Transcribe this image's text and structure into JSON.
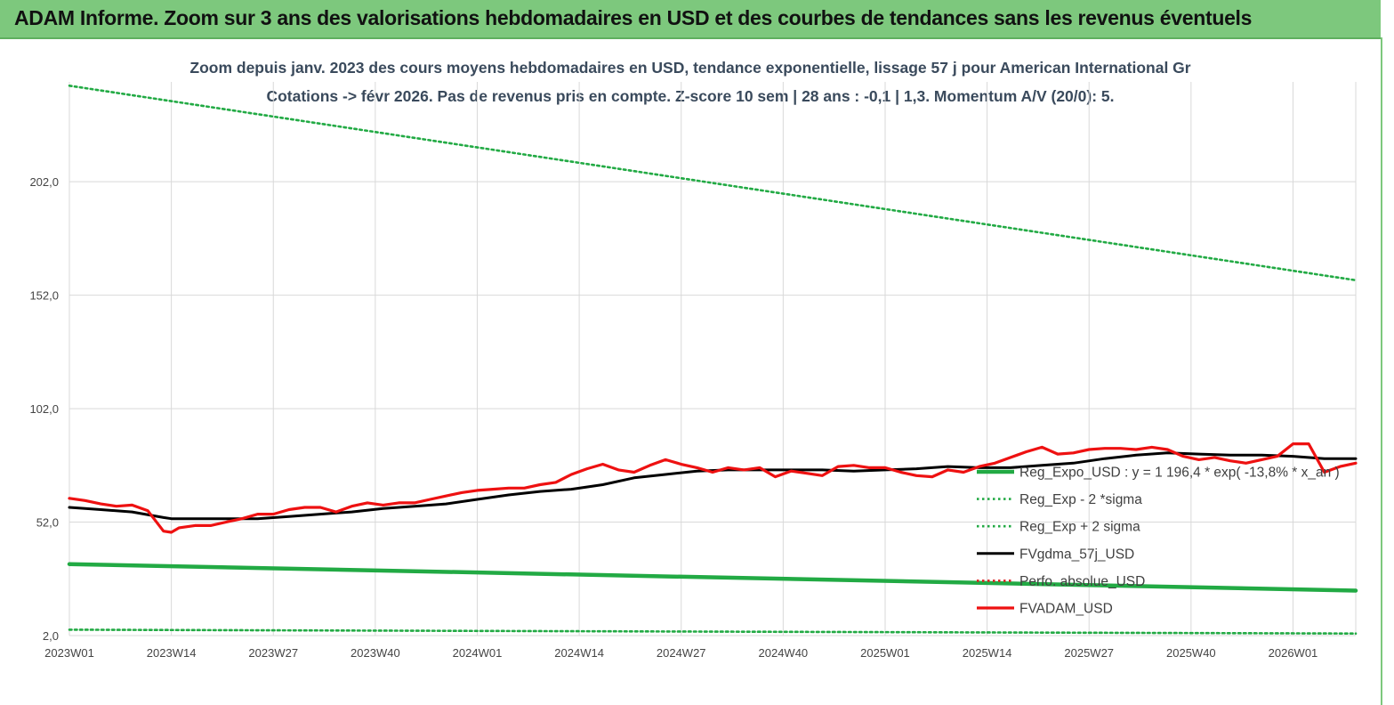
{
  "banner": {
    "title": "ADAM Informe. Zoom sur 3 ans des valorisations hebdomadaires en USD et des courbes de tendances sans les revenus éventuels",
    "background_color": "#7dc87d"
  },
  "chart_data": {
    "type": "line",
    "title": "Zoom depuis janv. 2023 des cours moyens hebdomadaires en USD, tendance exponentielle, lissage 57 j pour American International Gr",
    "subtitle": "Cotations -> févr 2026.  Pas de revenus pris en compte. Z-score 10 sem  | 28 ans : -0,1  | 1,3. Momentum A/V (20/0): 5.",
    "x_tick_labels": [
      "2023W01",
      "2023W14",
      "2023W27",
      "2023W40",
      "2024W01",
      "2024W14",
      "2024W27",
      "2024W40",
      "2025W01",
      "2025W14",
      "2025W27",
      "2025W40",
      "2026W01"
    ],
    "y_tick_labels": [
      "2,0",
      "52,0",
      "102,0",
      "152,0",
      "202,0"
    ],
    "ylim": [
      2,
      246
    ],
    "x_range_weeks": [
      0,
      164
    ],
    "grid": "vertical and horizontal",
    "legend_placement": "right, inside plot",
    "series": [
      {
        "name": "Reg_Expo_USD : y = 1 196,4 * exp( -13,8% * x_an )",
        "color": "#22aa44",
        "style": "solid-thick",
        "x": [
          0,
          164
        ],
        "values": [
          33.5,
          21.8
        ]
      },
      {
        "name": "Reg_Exp - 2 *sigma",
        "color": "#22aa44",
        "style": "dotted",
        "x": [
          0,
          164
        ],
        "values": [
          4.6,
          2.9
        ]
      },
      {
        "name": "Reg_Exp + 2 sigma",
        "color": "#22aa44",
        "style": "dotted",
        "x": [
          0,
          164
        ],
        "values": [
          244.3,
          158.6
        ]
      },
      {
        "name": "FVgdma_57j_USD",
        "color": "#000000",
        "style": "solid",
        "x": [
          0,
          4,
          8,
          12,
          13,
          16,
          20,
          24,
          28,
          32,
          36,
          40,
          44,
          48,
          52,
          56,
          60,
          64,
          68,
          72,
          76,
          80,
          84,
          88,
          92,
          96,
          100,
          104,
          108,
          112,
          116,
          120,
          124,
          128,
          132,
          136,
          140,
          144,
          148,
          152,
          156,
          160,
          164
        ],
        "values": [
          58.5,
          57.5,
          56.5,
          54,
          53.5,
          53.5,
          53.5,
          53.5,
          54.5,
          55.5,
          56.5,
          58,
          59,
          60,
          62,
          64,
          65.5,
          66.5,
          68.5,
          71.5,
          73,
          74.5,
          75,
          75,
          75,
          75,
          74.5,
          75,
          75.5,
          76.5,
          76,
          76,
          77,
          78,
          80,
          81.5,
          82.5,
          82,
          81.5,
          81.5,
          81,
          80,
          80
        ]
      },
      {
        "name": "Perfo. absolue_USD",
        "color": "#dd2222",
        "style": "dotted",
        "x": [],
        "values": []
      },
      {
        "name": "FVADAM_USD",
        "color": "#ee1111",
        "style": "solid-thick",
        "x": [
          0,
          2,
          4,
          6,
          8,
          10,
          12,
          13,
          14,
          16,
          18,
          20,
          22,
          24,
          26,
          28,
          30,
          32,
          34,
          36,
          38,
          40,
          42,
          44,
          46,
          48,
          50,
          52,
          54,
          56,
          58,
          60,
          62,
          64,
          66,
          68,
          70,
          72,
          74,
          76,
          78,
          80,
          82,
          84,
          86,
          88,
          90,
          92,
          94,
          96,
          98,
          100,
          102,
          104,
          106,
          108,
          110,
          112,
          114,
          116,
          118,
          120,
          122,
          124,
          126,
          128,
          130,
          132,
          134,
          136,
          138,
          140,
          142,
          144,
          146,
          148,
          150,
          152,
          154,
          156,
          158,
          160,
          162,
          164
        ],
        "values": [
          62.5,
          61.5,
          60,
          59,
          59.5,
          57,
          48,
          47.5,
          49.5,
          50.5,
          50.5,
          52,
          53.5,
          55.5,
          55.5,
          57.5,
          58.5,
          58.5,
          56.5,
          59,
          60.5,
          59.5,
          60.5,
          60.5,
          62,
          63.5,
          65,
          66,
          66.5,
          67,
          67,
          68.5,
          69.5,
          73,
          75.5,
          77.5,
          75,
          74,
          77,
          79.5,
          77.5,
          76,
          74,
          76,
          75,
          76,
          72,
          74.5,
          73.5,
          72.5,
          76.5,
          77,
          76,
          76,
          74,
          72.5,
          72,
          75,
          74,
          76.5,
          78,
          80.5,
          83,
          85,
          82,
          82.5,
          84,
          84.5,
          84.5,
          84,
          85,
          84,
          81,
          79.5,
          80.5,
          79,
          78,
          79.5,
          81,
          86.5,
          86.5,
          74,
          76.5,
          78
        ]
      }
    ]
  }
}
